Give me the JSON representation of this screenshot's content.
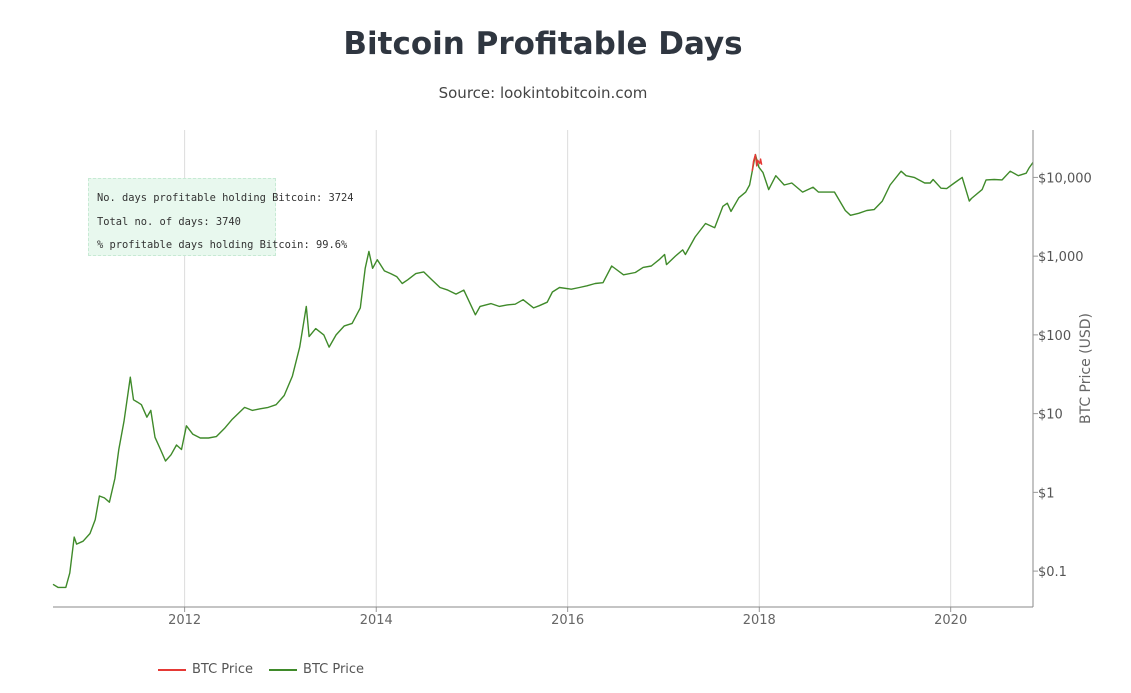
{
  "header": {
    "title": "Bitcoin Profitable Days",
    "subtitle": "Source: lookintobitcoin.com"
  },
  "stats": {
    "profitable_label": "No. days profitable holding Bitcoin: 3724",
    "total_label": "Total no. of days: 3740",
    "percent_label": "% profitable days holding Bitcoin: 99.6%"
  },
  "legend": [
    {
      "label": "BTC Price",
      "color": "#e53935"
    },
    {
      "label": "BTC Price",
      "color": "#3f8a2a"
    }
  ],
  "chart_data": {
    "type": "line",
    "title": "Bitcoin Profitable Days",
    "subtitle": "Source: lookintobitcoin.com",
    "xlabel": "",
    "ylabel": "BTC Price (USD)",
    "yscale": "log",
    "y_axis_side": "right",
    "xlim": [
      "2010-08-17",
      "2020-11-10"
    ],
    "ylim": [
      0.035,
      40000
    ],
    "x_ticks": [
      "2012",
      "2014",
      "2016",
      "2018",
      "2020"
    ],
    "y_ticks": [
      {
        "value": 0.1,
        "label": "$0.1"
      },
      {
        "value": 1,
        "label": "$1"
      },
      {
        "value": 10,
        "label": "$10"
      },
      {
        "value": 100,
        "label": "$100"
      },
      {
        "value": 1000,
        "label": "$1,000"
      },
      {
        "value": 10000,
        "label": "$10,000"
      }
    ],
    "grid": "vertical",
    "legend_position": "bottom-left",
    "series": [
      {
        "name": "BTC Price",
        "color": "#3f8a2a",
        "x": [
          "2010-08-17",
          "2010-09-05",
          "2010-10-05",
          "2010-10-20",
          "2010-11-06",
          "2010-11-15",
          "2010-12-10",
          "2011-01-05",
          "2011-01-25",
          "2011-02-10",
          "2011-03-01",
          "2011-03-20",
          "2011-04-10",
          "2011-04-25",
          "2011-05-15",
          "2011-06-08",
          "2011-06-20",
          "2011-07-05",
          "2011-07-20",
          "2011-08-10",
          "2011-08-25",
          "2011-09-10",
          "2011-10-01",
          "2011-10-20",
          "2011-11-10",
          "2011-12-01",
          "2011-12-20",
          "2012-01-08",
          "2012-02-01",
          "2012-03-01",
          "2012-04-01",
          "2012-05-01",
          "2012-06-01",
          "2012-07-01",
          "2012-08-17",
          "2012-09-15",
          "2012-10-15",
          "2012-11-15",
          "2012-12-15",
          "2013-01-15",
          "2013-02-15",
          "2013-03-15",
          "2013-04-09",
          "2013-04-20",
          "2013-05-15",
          "2013-06-15",
          "2013-07-05",
          "2013-08-01",
          "2013-09-01",
          "2013-10-01",
          "2013-11-01",
          "2013-11-20",
          "2013-12-04",
          "2013-12-18",
          "2014-01-05",
          "2014-02-01",
          "2014-02-25",
          "2014-03-20",
          "2014-04-10",
          "2014-05-01",
          "2014-06-01",
          "2014-07-01",
          "2014-08-01",
          "2014-09-01",
          "2014-10-01",
          "2014-11-01",
          "2014-12-01",
          "2015-01-14",
          "2015-02-01",
          "2015-03-15",
          "2015-04-15",
          "2015-05-15",
          "2015-06-15",
          "2015-07-15",
          "2015-08-24",
          "2015-09-15",
          "2015-10-15",
          "2015-11-04",
          "2015-12-01",
          "2016-01-15",
          "2016-02-15",
          "2016-03-15",
          "2016-04-15",
          "2016-05-15",
          "2016-06-17",
          "2016-08-01",
          "2016-09-15",
          "2016-10-15",
          "2016-11-15",
          "2016-12-15",
          "2017-01-05",
          "2017-01-12",
          "2017-02-15",
          "2017-03-15",
          "2017-03-25",
          "2017-05-01",
          "2017-06-10",
          "2017-07-15",
          "2017-08-15",
          "2017-09-01",
          "2017-09-15",
          "2017-10-15",
          "2017-11-10",
          "2017-11-25",
          "2017-12-17",
          "2017-12-30",
          "2018-01-15",
          "2018-02-06",
          "2018-03-05",
          "2018-04-06",
          "2018-05-05",
          "2018-06-15",
          "2018-07-25",
          "2018-08-15",
          "2018-09-15",
          "2018-10-15",
          "2018-11-25",
          "2018-12-15",
          "2019-01-15",
          "2019-02-15",
          "2019-03-15",
          "2019-04-15",
          "2019-05-15",
          "2019-06-26",
          "2019-07-15",
          "2019-08-15",
          "2019-09-24",
          "2019-10-15",
          "2019-10-26",
          "2019-11-25",
          "2019-12-17",
          "2020-01-15",
          "2020-02-14",
          "2020-03-12",
          "2020-03-20",
          "2020-04-30",
          "2020-05-15",
          "2020-06-15",
          "2020-07-15",
          "2020-08-15",
          "2020-09-15",
          "2020-10-15",
          "2020-10-25",
          "2020-11-10"
        ],
        "y": [
          0.068,
          0.062,
          0.062,
          0.095,
          0.27,
          0.22,
          0.24,
          0.3,
          0.45,
          0.9,
          0.85,
          0.75,
          1.5,
          3.5,
          8,
          29,
          15,
          14,
          13,
          9,
          11,
          5,
          3.5,
          2.5,
          3,
          4,
          3.5,
          7,
          5.5,
          4.9,
          4.9,
          5.1,
          6.5,
          8.5,
          12,
          11,
          11.5,
          12,
          13,
          17,
          30,
          70,
          230,
          95,
          120,
          100,
          70,
          100,
          130,
          140,
          220,
          700,
          1150,
          700,
          900,
          650,
          600,
          550,
          450,
          500,
          600,
          630,
          500,
          400,
          370,
          330,
          370,
          180,
          230,
          250,
          230,
          240,
          245,
          280,
          220,
          235,
          260,
          350,
          400,
          380,
          400,
          420,
          450,
          460,
          750,
          580,
          620,
          720,
          750,
          900,
          1050,
          780,
          1000,
          1200,
          1050,
          1750,
          2600,
          2300,
          4300,
          4700,
          3700,
          5500,
          6500,
          8000,
          19500,
          13500,
          11500,
          7000,
          10500,
          8000,
          8500,
          6500,
          7500,
          6500,
          6500,
          6500,
          3800,
          3300,
          3500,
          3800,
          3900,
          5000,
          8000,
          12000,
          10500,
          10000,
          8500,
          8500,
          9400,
          7300,
          7200,
          8500,
          10000,
          5000,
          5400,
          7000,
          9300,
          9400,
          9300,
          12000,
          10500,
          11300,
          13000,
          15500
        ]
      },
      {
        "name": "BTC Price",
        "color": "#e53935",
        "x": [
          "2017-12-05",
          "2017-12-10",
          "2017-12-17",
          "2017-12-22",
          "2017-12-26",
          "2018-01-03",
          "2018-01-06",
          "2018-01-10"
        ],
        "y": [
          12000,
          16000,
          19500,
          14000,
          16500,
          15000,
          17100,
          14500
        ]
      }
    ]
  }
}
